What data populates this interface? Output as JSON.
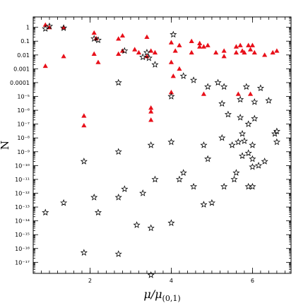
{
  "chart_data": {
    "type": "scatter",
    "title": "",
    "xlabel_main": "μ/μ",
    "xlabel_sub": "(0,1)",
    "ylabel": "N",
    "xlim": [
      0.6,
      6.95
    ],
    "ylim_log10": [
      -17.8,
      0.75
    ],
    "y_scale": "log",
    "grid": false,
    "x_ticks": [
      {
        "value": 2,
        "label": "2"
      },
      {
        "value": 4,
        "label": "4"
      },
      {
        "value": 6,
        "label": "6"
      }
    ],
    "y_ticks": [
      {
        "exp": 0,
        "label": "1"
      },
      {
        "exp": -1,
        "label": "0.1"
      },
      {
        "exp": -2,
        "label": "0.01"
      },
      {
        "exp": -3,
        "label": "0.001"
      },
      {
        "exp": -4,
        "label": "0.0001"
      },
      {
        "exp": -5,
        "label": "10⁻⁵"
      },
      {
        "exp": -6,
        "label": "10⁻⁶"
      },
      {
        "exp": -7,
        "label": "10⁻⁷"
      },
      {
        "exp": -8,
        "label": "10⁻⁸"
      },
      {
        "exp": -9,
        "label": "10⁻⁹"
      },
      {
        "exp": -10,
        "label": "10⁻¹⁰"
      },
      {
        "exp": -11,
        "label": "10⁻¹¹"
      },
      {
        "exp": -12,
        "label": "10⁻¹²"
      },
      {
        "exp": -13,
        "label": "10⁻¹³"
      },
      {
        "exp": -14,
        "label": "10⁻¹⁴"
      },
      {
        "exp": -15,
        "label": "10⁻¹⁵"
      },
      {
        "exp": -16,
        "label": "10⁻¹⁶"
      },
      {
        "exp": -17,
        "label": "10⁻¹⁷"
      }
    ],
    "series": [
      {
        "marker": "filled-triangle",
        "color": "#e8101a",
        "points": [
          [
            0.9,
            1.5
          ],
          [
            0.9,
            0.0016
          ],
          [
            1.0,
            1.0
          ],
          [
            1.35,
            1.0
          ],
          [
            1.35,
            0.008
          ],
          [
            1.85,
            4e-07
          ],
          [
            1.85,
            8e-08
          ],
          [
            2.1,
            0.4
          ],
          [
            2.1,
            0.012
          ],
          [
            2.15,
            0.16
          ],
          [
            2.2,
            0.003
          ],
          [
            2.7,
            0.15
          ],
          [
            2.7,
            0.012
          ],
          [
            2.8,
            0.25
          ],
          [
            2.8,
            0.02
          ],
          [
            3.1,
            0.025
          ],
          [
            3.2,
            0.015
          ],
          [
            3.4,
            0.2
          ],
          [
            3.4,
            0.008
          ],
          [
            3.5,
            0.02
          ],
          [
            3.5,
            1.5e-06
          ],
          [
            3.5,
            8e-07
          ],
          [
            3.5,
            2e-07
          ],
          [
            3.6,
            0.015
          ],
          [
            4.0,
            0.08
          ],
          [
            4.0,
            0.003
          ],
          [
            4.0,
            2e-05
          ],
          [
            4.05,
            0.0003
          ],
          [
            4.1,
            0.02
          ],
          [
            4.2,
            0.05
          ],
          [
            4.2,
            0.001
          ],
          [
            4.5,
            0.1
          ],
          [
            4.5,
            0.015
          ],
          [
            4.7,
            0.07
          ],
          [
            4.7,
            0.04
          ],
          [
            4.8,
            0.04
          ],
          [
            4.8,
            1.5e-05
          ],
          [
            4.9,
            0.05
          ],
          [
            5.1,
            0.015
          ],
          [
            5.3,
            0.02
          ],
          [
            5.3,
            0.008
          ],
          [
            5.6,
            0.04
          ],
          [
            5.6,
            0.015
          ],
          [
            5.65,
            1.5e-05
          ],
          [
            5.7,
            0.05
          ],
          [
            5.75,
            0.02
          ],
          [
            5.8,
            0.015
          ],
          [
            5.9,
            0.05
          ],
          [
            5.95,
            0.025
          ],
          [
            5.95,
            1.5e-05
          ],
          [
            6.0,
            0.05
          ],
          [
            6.05,
            0.015
          ],
          [
            6.3,
            0.01
          ],
          [
            6.5,
            0.015
          ],
          [
            6.6,
            0.02
          ]
        ]
      },
      {
        "marker": "open-star",
        "color": "#000000",
        "points": [
          [
            0.9,
            0.8
          ],
          [
            0.9,
            4e-14
          ],
          [
            1.0,
            1.2
          ],
          [
            1.35,
            0.9
          ],
          [
            1.35,
            2e-13
          ],
          [
            1.85,
            2e-10
          ],
          [
            1.85,
            5e-17
          ],
          [
            2.1,
            0.15
          ],
          [
            2.1,
            5e-13
          ],
          [
            2.2,
            0.12
          ],
          [
            2.2,
            4e-14
          ],
          [
            2.7,
            0.0001
          ],
          [
            2.7,
            1e-09
          ],
          [
            2.7,
            5e-13
          ],
          [
            2.7,
            4e-17
          ],
          [
            2.85,
            0.02
          ],
          [
            2.85,
            2e-12
          ],
          [
            3.15,
            5e-15
          ],
          [
            3.3,
            0.007
          ],
          [
            3.3,
            1e-12
          ],
          [
            3.4,
            0.015
          ],
          [
            3.45,
            0.006
          ],
          [
            3.5,
            3e-09
          ],
          [
            3.5,
            3e-15
          ],
          [
            3.5,
            1.2e-18
          ],
          [
            3.6,
            0.002
          ],
          [
            3.6,
            1e-11
          ],
          [
            4.0,
            1e-05
          ],
          [
            4.0,
            5e-09
          ],
          [
            4.0,
            7e-15
          ],
          [
            4.05,
            0.3
          ],
          [
            4.2,
            1e-11
          ],
          [
            4.3,
            0.0003
          ],
          [
            4.3,
            3e-11
          ],
          [
            4.55,
            0.00015
          ],
          [
            4.55,
            3e-12
          ],
          [
            4.8,
            3e-09
          ],
          [
            4.8,
            1.5e-13
          ],
          [
            4.9,
            5e-05
          ],
          [
            4.9,
            3e-10
          ],
          [
            5.0,
            2e-13
          ],
          [
            5.15,
            0.0001
          ],
          [
            5.25,
            3e-06
          ],
          [
            5.25,
            1e-08
          ],
          [
            5.3,
            5e-05
          ],
          [
            5.3,
            3e-12
          ],
          [
            5.4,
            5e-07
          ],
          [
            5.5,
            3e-09
          ],
          [
            5.55,
            1e-11
          ],
          [
            5.6,
            3e-11
          ],
          [
            5.65,
            5e-09
          ],
          [
            5.7,
            6e-06
          ],
          [
            5.7,
            3e-07
          ],
          [
            5.75,
            5e-10
          ],
          [
            5.75,
            2e-08
          ],
          [
            5.8,
            6e-09
          ],
          [
            5.85,
            5e-05
          ],
          [
            5.9,
            8e-10
          ],
          [
            5.9,
            3e-12
          ],
          [
            5.9,
            1e-07
          ],
          [
            6.0,
            3e-09
          ],
          [
            6.0,
            3e-10
          ],
          [
            6.0,
            8e-11
          ],
          [
            6.0,
            3e-12
          ],
          [
            6.05,
            2.5e-07
          ],
          [
            6.05,
            4e-06
          ],
          [
            6.15,
            1e-10
          ],
          [
            6.2,
            4e-05
          ],
          [
            6.3,
            2e-10
          ],
          [
            6.4,
            5e-06
          ],
          [
            6.55,
            2e-08
          ],
          [
            6.6,
            3e-08
          ],
          [
            6.6,
            5e-09
          ]
        ]
      }
    ]
  }
}
